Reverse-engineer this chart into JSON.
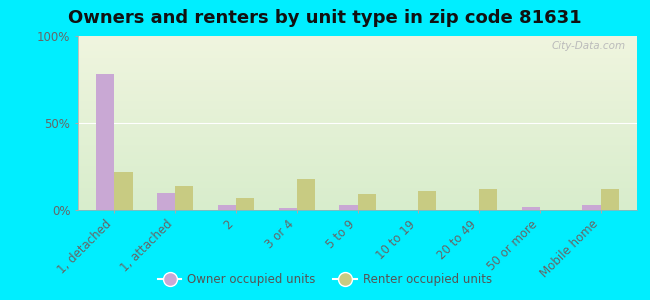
{
  "title": "Owners and renters by unit type in zip code 81631",
  "categories": [
    "1, detached",
    "1, attached",
    "2",
    "3 or 4",
    "5 to 9",
    "10 to 19",
    "20 to 49",
    "50 or more",
    "Mobile home"
  ],
  "owner_values": [
    78,
    10,
    3,
    1,
    3,
    0,
    0,
    2,
    3
  ],
  "renter_values": [
    22,
    14,
    7,
    18,
    9,
    11,
    12,
    0,
    12
  ],
  "owner_color": "#c9a8d4",
  "renter_color": "#c8cb82",
  "background_color": "#00eeff",
  "gradient_top": "#f0f5df",
  "gradient_bottom": "#d8edcc",
  "legend_owner": "Owner occupied units",
  "legend_renter": "Renter occupied units",
  "yticks": [
    0,
    50,
    100
  ],
  "ylabels": [
    "0%",
    "50%",
    "100%"
  ],
  "bar_width": 0.3,
  "title_fontsize": 13,
  "watermark": "City-Data.com"
}
